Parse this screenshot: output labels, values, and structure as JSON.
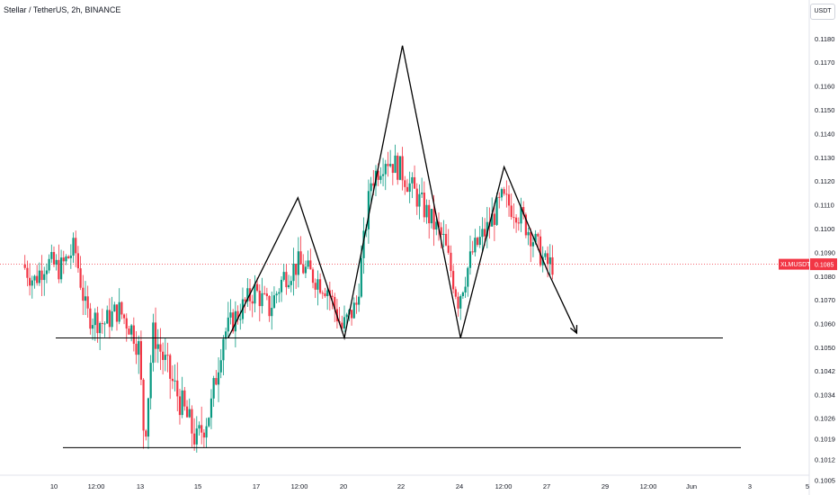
{
  "header": {
    "title": "Stellar / TetherUS, 2h, BINANCE",
    "unit": "USDT"
  },
  "price_tag": {
    "symbol": "XLMUSDT",
    "value": "0.1085",
    "color": "#f23645"
  },
  "colors": {
    "up": "#089981",
    "down": "#f23645",
    "drawing": "#000000"
  },
  "chart_data": {
    "type": "candlestick",
    "title": "Stellar / TetherUS, 2h, BINANCE",
    "yaxis_unit": "USDT",
    "y_ticks": [
      "0.1180",
      "0.1170",
      "0.1160",
      "0.1150",
      "0.1140",
      "0.1130",
      "0.1120",
      "0.1110",
      "0.1100",
      "0.1090",
      "0.1080",
      "0.1070",
      "0.1060",
      "0.1050",
      "0.1042",
      "0.1034",
      "0.1026",
      "0.1019",
      "0.1012",
      "0.1005"
    ],
    "x_ticks": [
      "10",
      "12:00",
      "13",
      "15",
      "17",
      "12:00",
      "20",
      "22",
      "24",
      "12:00",
      "27",
      "29",
      "12:00",
      "Jun",
      "3",
      "5"
    ],
    "last_price": 0.1085,
    "horizontal_levels": [
      0.1054,
      0.1016
    ],
    "pattern_path": [
      {
        "t": 16.0,
        "p": 0.1054
      },
      {
        "t": 18.4,
        "p": 0.1113
      },
      {
        "t": 20.0,
        "p": 0.1054
      },
      {
        "t": 22.0,
        "p": 0.1177
      },
      {
        "t": 24.0,
        "p": 0.1054
      },
      {
        "t": 25.5,
        "p": 0.1126
      },
      {
        "t": 27.0,
        "p": 0.1082
      },
      {
        "t": 28.0,
        "p": 0.1056
      }
    ],
    "series_anchors": [
      {
        "t": 9.0,
        "p": 0.1085
      },
      {
        "t": 9.4,
        "p": 0.1078
      },
      {
        "t": 9.8,
        "p": 0.1086
      },
      {
        "t": 10.3,
        "p": 0.1083
      },
      {
        "t": 10.8,
        "p": 0.1092
      },
      {
        "t": 11.2,
        "p": 0.1064
      },
      {
        "t": 11.8,
        "p": 0.106
      },
      {
        "t": 12.3,
        "p": 0.1066
      },
      {
        "t": 12.8,
        "p": 0.1057
      },
      {
        "t": 13.0,
        "p": 0.105
      },
      {
        "t": 13.2,
        "p": 0.1018
      },
      {
        "t": 13.5,
        "p": 0.1056
      },
      {
        "t": 14.0,
        "p": 0.1042
      },
      {
        "t": 14.5,
        "p": 0.103
      },
      {
        "t": 15.0,
        "p": 0.1018
      },
      {
        "t": 15.5,
        "p": 0.103
      },
      {
        "t": 15.9,
        "p": 0.1055
      },
      {
        "t": 16.4,
        "p": 0.1064
      },
      {
        "t": 17.0,
        "p": 0.1074
      },
      {
        "t": 17.5,
        "p": 0.1066
      },
      {
        "t": 18.0,
        "p": 0.108
      },
      {
        "t": 18.5,
        "p": 0.1085
      },
      {
        "t": 19.0,
        "p": 0.108
      },
      {
        "t": 19.5,
        "p": 0.1075
      },
      {
        "t": 20.0,
        "p": 0.1058
      },
      {
        "t": 20.5,
        "p": 0.1068
      },
      {
        "t": 21.0,
        "p": 0.112
      },
      {
        "t": 21.5,
        "p": 0.113
      },
      {
        "t": 22.0,
        "p": 0.1125
      },
      {
        "t": 22.5,
        "p": 0.1115
      },
      {
        "t": 23.0,
        "p": 0.1105
      },
      {
        "t": 23.5,
        "p": 0.1095
      },
      {
        "t": 24.0,
        "p": 0.107
      },
      {
        "t": 24.5,
        "p": 0.109
      },
      {
        "t": 25.0,
        "p": 0.11
      },
      {
        "t": 25.5,
        "p": 0.1112
      },
      {
        "t": 26.0,
        "p": 0.1108
      },
      {
        "t": 26.5,
        "p": 0.1098
      },
      {
        "t": 27.0,
        "p": 0.1085
      }
    ]
  }
}
